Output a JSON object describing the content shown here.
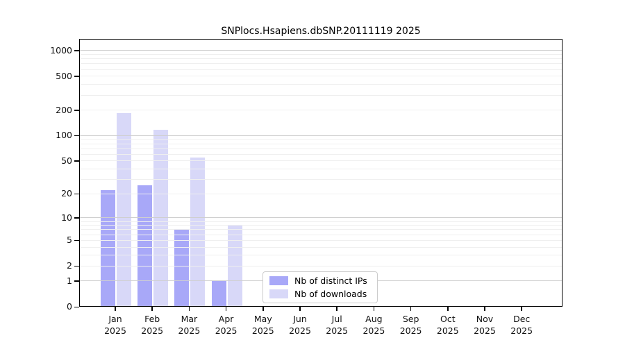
{
  "title": "SNPlocs.Hsapiens.dbSNP.20111119 2025",
  "chart_data": {
    "type": "bar",
    "title": "SNPlocs.Hsapiens.dbSNP.20111119 2025",
    "x_year": "2025",
    "x_categories_line1": [
      "Jan",
      "Feb",
      "Mar",
      "Apr",
      "May",
      "Jun",
      "Jul",
      "Aug",
      "Sep",
      "Oct",
      "Nov",
      "Dec"
    ],
    "categories": [
      "Jan 2025",
      "Feb 2025",
      "Mar 2025",
      "Apr 2025",
      "May 2025",
      "Jun 2025",
      "Jul 2025",
      "Aug 2025",
      "Sep 2025",
      "Oct 2025",
      "Nov 2025",
      "Dec 2025"
    ],
    "series": [
      {
        "name": "Nb of distinct IPs",
        "color": "#a8a8f8",
        "values": [
          22,
          25,
          7,
          1,
          0,
          0,
          0,
          0,
          0,
          0,
          0,
          0
        ]
      },
      {
        "name": "Nb of downloads",
        "color": "#d8d8f8",
        "values": [
          180,
          115,
          54,
          8,
          0,
          0,
          0,
          0,
          0,
          0,
          0,
          0
        ]
      }
    ],
    "y_axis": {
      "scale": "log10(1+x)",
      "tick_values": [
        0,
        1,
        2,
        5,
        10,
        20,
        50,
        100,
        200,
        500,
        1000
      ],
      "tick_labels": [
        "0",
        "1",
        "2",
        "5",
        "10",
        "20",
        "50",
        "100",
        "200",
        "500",
        "1000"
      ],
      "major_gridline_values": [
        1,
        10,
        100,
        1000
      ],
      "ylim": [
        0,
        1000
      ]
    },
    "grid": "horizontal log minor + major gridlines",
    "legend_position": "inside-bottom-center"
  }
}
